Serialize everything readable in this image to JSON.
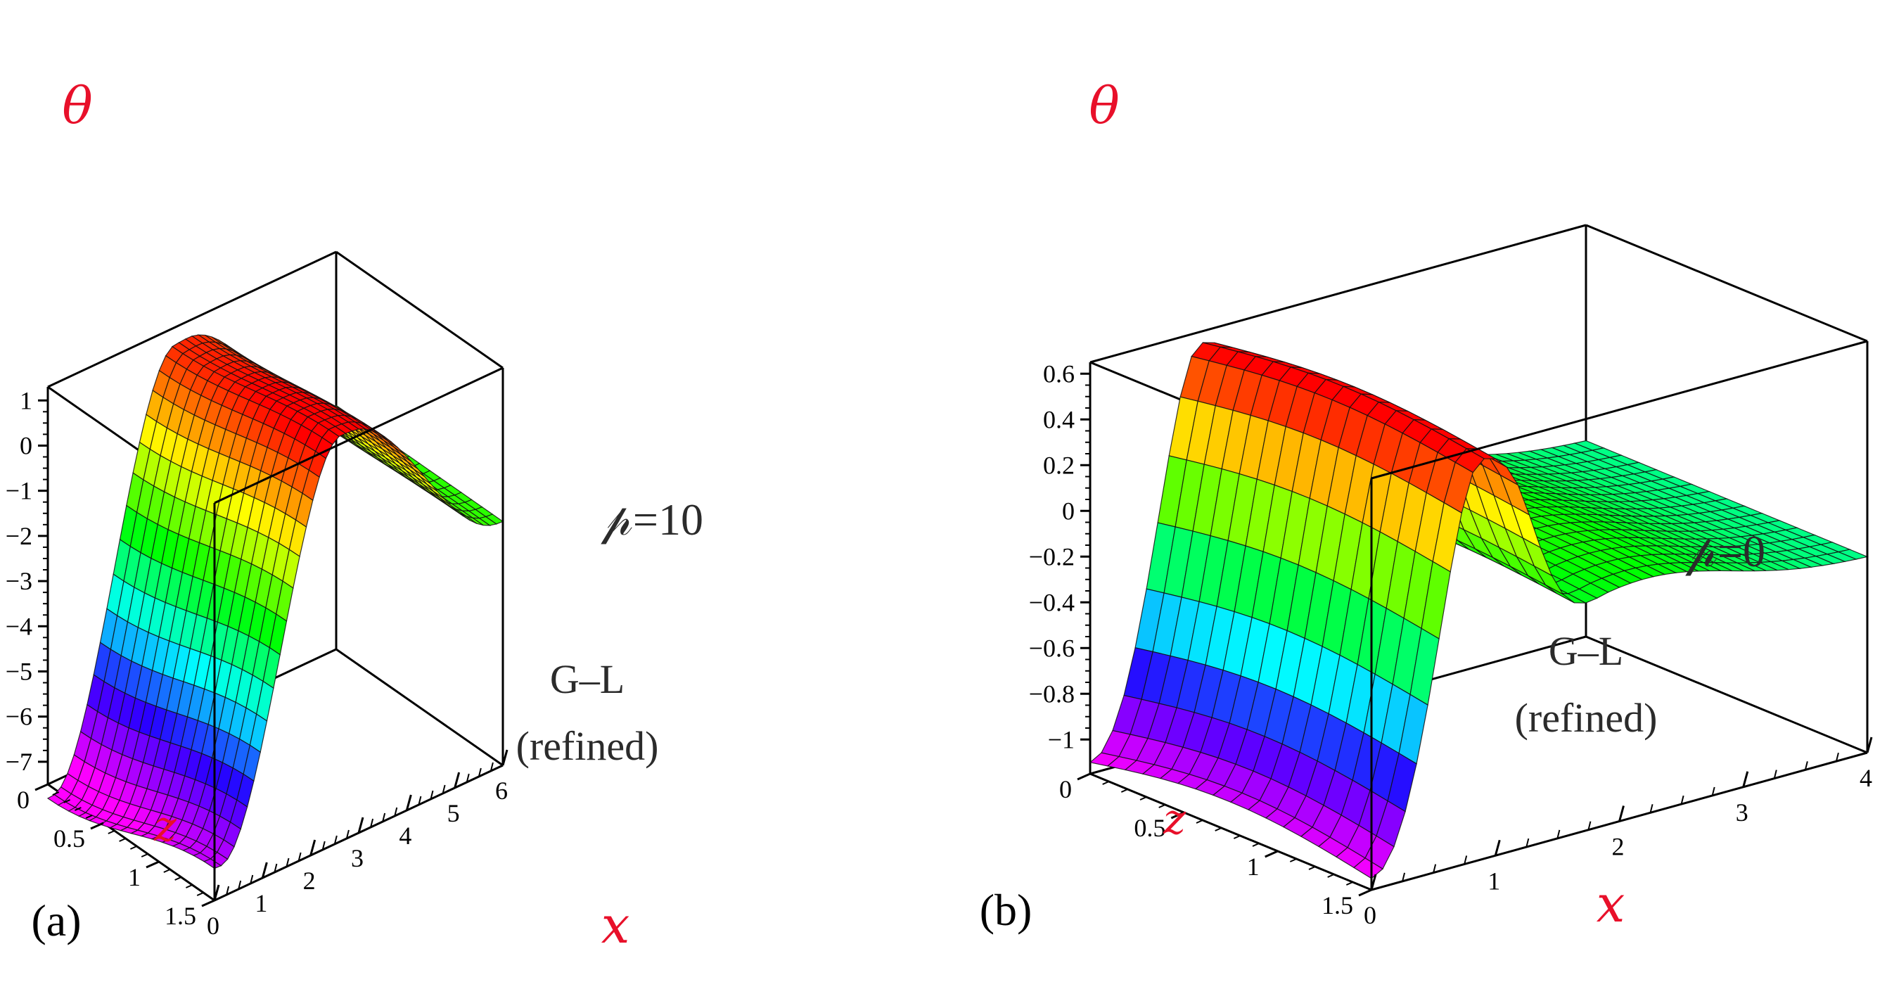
{
  "chart_data": [
    {
      "type": "surface",
      "panel_label": "(a)",
      "parameter_label": "𝓅=10",
      "annotation": [
        "G–L",
        "(refined)"
      ],
      "zlabel": "θ",
      "xlabel": "x",
      "ylabel": "z",
      "xlim": [
        0,
        6
      ],
      "ylim": [
        0,
        1.5
      ],
      "zlim": [
        -7.5,
        1.3
      ],
      "x_ticks": [
        "0",
        "1",
        "2",
        "3",
        "4",
        "5",
        "6"
      ],
      "y_ticks": [
        "0",
        "0.5",
        "1",
        "1.5"
      ],
      "z_ticks": [
        "1",
        "0",
        "−1",
        "−2",
        "−3",
        "−4",
        "−5",
        "−6",
        "−7"
      ],
      "z_tick_values": [
        1,
        0,
        -1,
        -2,
        -3,
        -4,
        -5,
        -6,
        -7
      ],
      "surface_params": {
        "z_min": -7.3,
        "z_peak": 1.2,
        "z_end": -2.1,
        "peak_x": 2.4
      }
    },
    {
      "type": "surface",
      "panel_label": "(b)",
      "parameter_label": "𝓅=0",
      "annotation": [
        "G–L",
        "(refined)"
      ],
      "zlabel": "θ",
      "xlabel": "x",
      "ylabel": "z",
      "xlim": [
        0,
        4
      ],
      "ylim": [
        0,
        1.5
      ],
      "zlim": [
        -1.15,
        0.65
      ],
      "x_ticks": [
        "0",
        "1",
        "2",
        "3",
        "4"
      ],
      "y_ticks": [
        "0",
        "0.5",
        "1",
        "1.5"
      ],
      "z_ticks": [
        "0.6",
        "0.4",
        "0.2",
        "0",
        "−0.2",
        "−0.4",
        "−0.6",
        "−0.8",
        "−1"
      ],
      "z_tick_values": [
        0.6,
        0.4,
        0.2,
        0,
        -0.2,
        -0.4,
        -0.6,
        -0.8,
        -1
      ],
      "surface_params": {
        "z_min": -1.1,
        "z_peak": 0.6,
        "z_end": -0.3,
        "peak_x": 1.0
      }
    }
  ],
  "colors": {
    "axis_title": "#e8102a",
    "box": "#000000",
    "mesh": "#111111",
    "annotation": "#2b2b2b"
  }
}
